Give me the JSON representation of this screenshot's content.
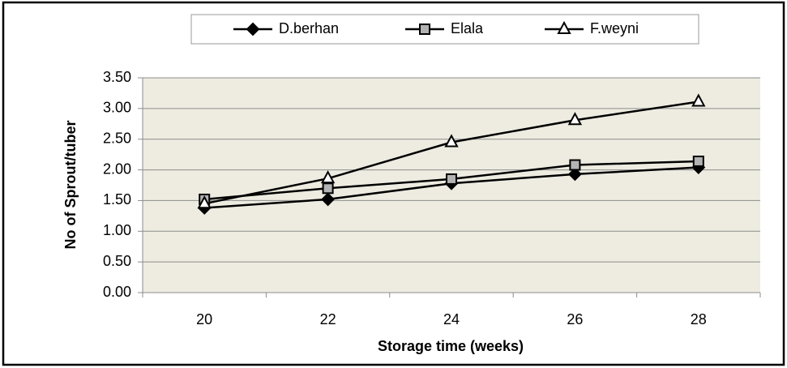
{
  "chart_data": {
    "type": "line",
    "x_label": "Storage time (weeks)",
    "y_label": "No of Sprout/tuber",
    "categories": [
      "20",
      "22",
      "24",
      "26",
      "28"
    ],
    "series": [
      {
        "name": "D.berhan",
        "color": "#000000",
        "marker": "diamond",
        "values": [
          1.38,
          1.52,
          1.78,
          1.93,
          2.04
        ]
      },
      {
        "name": "Elala",
        "color": "#000000",
        "marker": "square",
        "values": [
          1.52,
          1.7,
          1.85,
          2.08,
          2.14
        ]
      },
      {
        "name": "F.weyni",
        "color": "#000000",
        "marker": "triangle",
        "values": [
          1.45,
          1.86,
          2.45,
          2.81,
          3.11
        ]
      }
    ],
    "ylim": [
      0,
      3.5
    ],
    "yticks": [
      {
        "value": 0,
        "label": "0.00"
      },
      {
        "value": 0.5,
        "label": "0.50"
      },
      {
        "value": 1,
        "label": "1.00"
      },
      {
        "value": 1.5,
        "label": "1.50"
      },
      {
        "value": 2,
        "label": "2.00"
      },
      {
        "value": 2.5,
        "label": "2.50"
      },
      {
        "value": 3,
        "label": "3.00"
      },
      {
        "value": 3.5,
        "label": "3.50"
      }
    ],
    "grid": true,
    "legend": "top"
  }
}
